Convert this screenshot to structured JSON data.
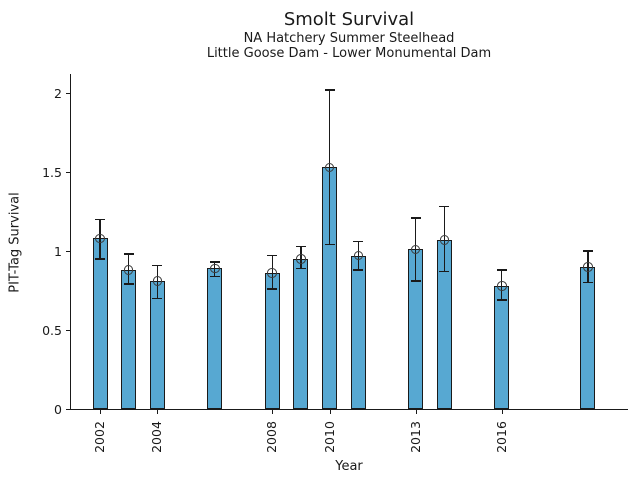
{
  "chart_data": {
    "type": "bar",
    "title": "Smolt Survival",
    "subtitle1": "NA Hatchery Summer Steelhead",
    "subtitle2": "Little Goose Dam - Lower Monumental Dam",
    "xlabel": "Year",
    "ylabel": "PIT-Tag Survival",
    "bar_color": "#57a8d2",
    "bar_edge_color": "#1a1a1a",
    "error_bar_color": "#1a1a1a",
    "marker": "open-circle",
    "grid": false,
    "legend": "none",
    "ylim": [
      0,
      2.12
    ],
    "xlim": [
      2000.9,
      2020.4
    ],
    "yticks": [
      0,
      0.5,
      1,
      1.5,
      2
    ],
    "xticks": [
      2002,
      2004,
      2008,
      2010,
      2013,
      2016
    ],
    "points": [
      {
        "year": 2002,
        "value": 1.08,
        "ci_low": 0.95,
        "ci_high": 1.2
      },
      {
        "year": 2003,
        "value": 0.88,
        "ci_low": 0.79,
        "ci_high": 0.98
      },
      {
        "year": 2004,
        "value": 0.81,
        "ci_low": 0.7,
        "ci_high": 0.91
      },
      {
        "year": 2006,
        "value": 0.89,
        "ci_low": 0.84,
        "ci_high": 0.93
      },
      {
        "year": 2008,
        "value": 0.86,
        "ci_low": 0.76,
        "ci_high": 0.97
      },
      {
        "year": 2009,
        "value": 0.95,
        "ci_low": 0.89,
        "ci_high": 1.03
      },
      {
        "year": 2010,
        "value": 1.53,
        "ci_low": 1.04,
        "ci_high": 2.02
      },
      {
        "year": 2011,
        "value": 0.97,
        "ci_low": 0.88,
        "ci_high": 1.06
      },
      {
        "year": 2013,
        "value": 1.01,
        "ci_low": 0.81,
        "ci_high": 1.21
      },
      {
        "year": 2014,
        "value": 1.07,
        "ci_low": 0.87,
        "ci_high": 1.28
      },
      {
        "year": 2016,
        "value": 0.78,
        "ci_low": 0.69,
        "ci_high": 0.88
      },
      {
        "year": 2019,
        "value": 0.9,
        "ci_low": 0.8,
        "ci_high": 1.0
      }
    ]
  }
}
